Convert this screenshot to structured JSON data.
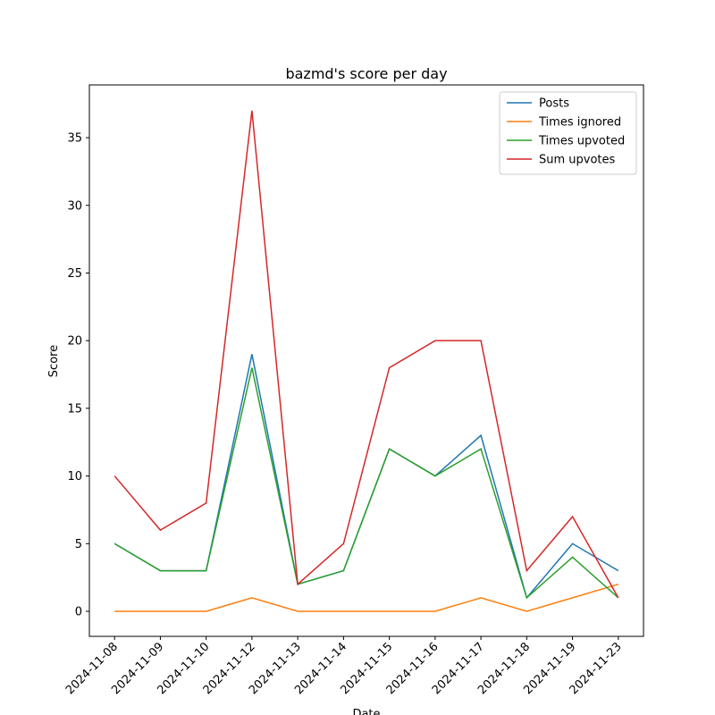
{
  "chart_data": {
    "type": "line",
    "title": "bazmd's score per day",
    "x_label": "Date",
    "y_label": "Score",
    "categories": [
      "2024-11-08",
      "2024-11-09",
      "2024-11-10",
      "2024-11-12",
      "2024-11-13",
      "2024-11-14",
      "2024-11-15",
      "2024-11-16",
      "2024-11-17",
      "2024-11-18",
      "2024-11-19",
      "2024-11-23"
    ],
    "series": [
      {
        "name": "Posts",
        "color": "#1f77b4",
        "values": [
          5,
          3,
          3,
          19,
          2,
          3,
          12,
          10,
          13,
          1,
          5,
          3
        ]
      },
      {
        "name": "Times ignored",
        "color": "#ff7f0e",
        "values": [
          0,
          0,
          0,
          1,
          0,
          0,
          0,
          0,
          1,
          0,
          1,
          2
        ]
      },
      {
        "name": "Times upvoted",
        "color": "#2ca02c",
        "values": [
          5,
          3,
          3,
          18,
          2,
          3,
          12,
          10,
          12,
          1,
          4,
          1
        ]
      },
      {
        "name": "Sum upvotes",
        "color": "#d62728",
        "values": [
          10,
          6,
          8,
          37,
          2,
          5,
          18,
          20,
          20,
          3,
          7,
          1
        ]
      }
    ],
    "ylim": [
      -1.85,
      38.9
    ],
    "yticks": [
      0,
      5,
      10,
      15,
      20,
      25,
      30,
      35
    ],
    "legend": "upper right"
  }
}
